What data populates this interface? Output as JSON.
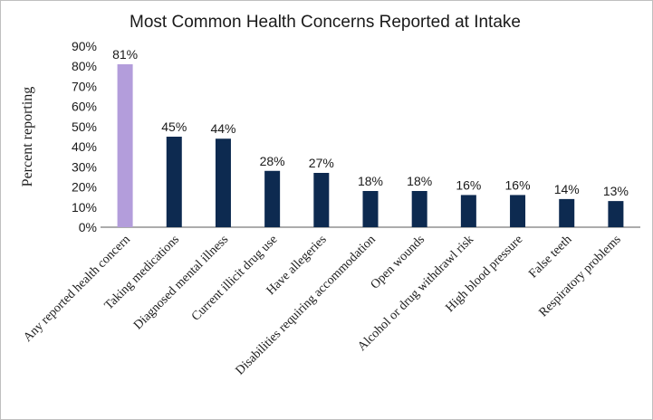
{
  "chart_data": {
    "type": "bar",
    "title": "Most Common Health Concerns Reported at Intake",
    "ylabel": "Percent  reporting",
    "xlabel": "",
    "ylim": [
      0,
      90
    ],
    "yticks": [
      "0%",
      "10%",
      "20%",
      "30%",
      "40%",
      "50%",
      "60%",
      "70%",
      "80%",
      "90%"
    ],
    "grid": false,
    "categories": [
      "Any reported health concern",
      "Taking medications",
      "Diagnosed mental illness",
      "Current illicit drug use",
      "Have allegeries",
      "Disabilities requiring accommodation",
      "Open wounds",
      "Alcohol or drug withdrawl risk",
      "High blood pressure",
      "False teeth",
      "Respiratory problems"
    ],
    "values": [
      81,
      45,
      44,
      28,
      27,
      18,
      18,
      16,
      16,
      14,
      13
    ],
    "data_labels": [
      "81%",
      "45%",
      "44%",
      "28%",
      "27%",
      "18%",
      "18%",
      "16%",
      "16%",
      "14%",
      "13%"
    ],
    "colors": {
      "highlight": "#b39ddb",
      "bar": "#0d2a50"
    },
    "highlight_index": 0
  }
}
